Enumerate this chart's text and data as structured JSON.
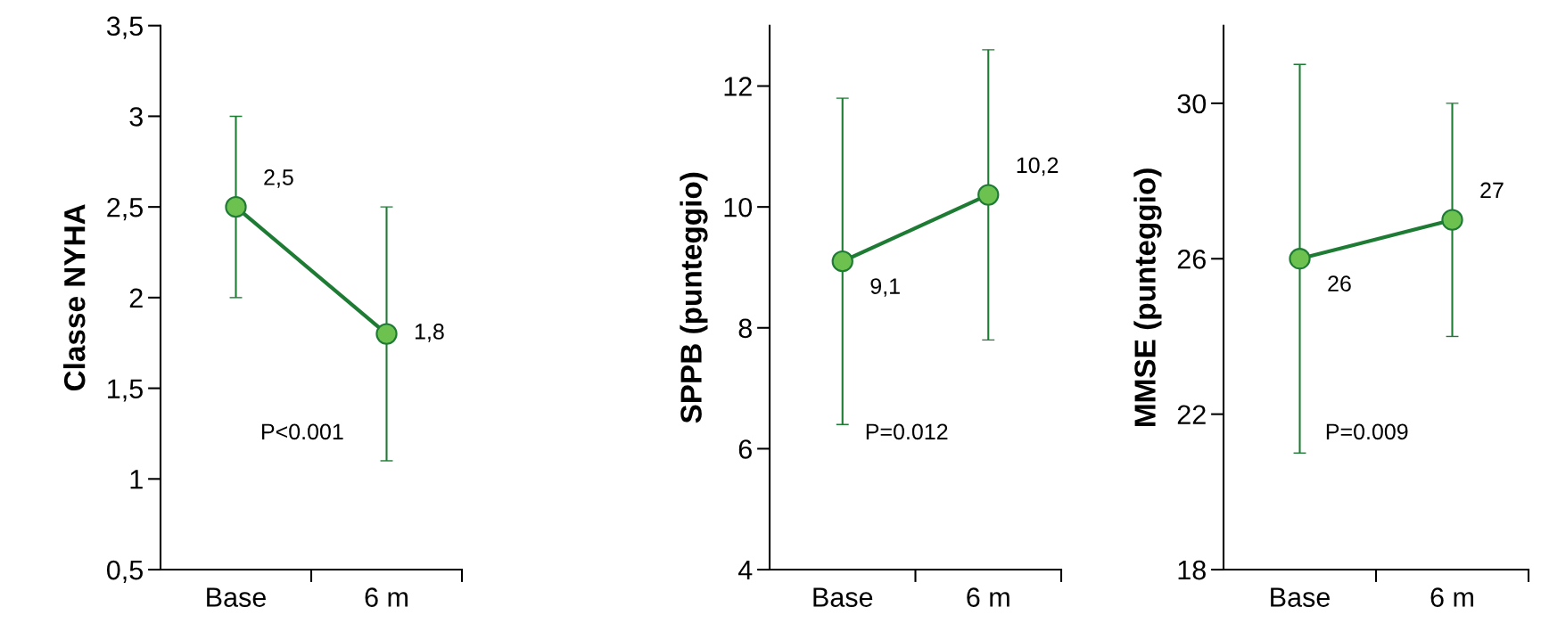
{
  "chart_data": [
    {
      "type": "line",
      "ylabel": "Classe NYHA",
      "categories": [
        "Base",
        "6 m"
      ],
      "ylim": [
        0.5,
        3.5
      ],
      "yticks": [
        {
          "value": 0.5,
          "label": "0,5"
        },
        1,
        {
          "value": 1.5,
          "label": "1,5"
        },
        2,
        {
          "value": 2.5,
          "label": "2,5"
        },
        3,
        {
          "value": 3.5,
          "label": "3,5"
        }
      ],
      "marker": "circle",
      "grid": false,
      "legend": false,
      "series": [
        {
          "color": "#1e7b34",
          "values": [
            2.5,
            1.8
          ],
          "errors": [
            0.5,
            0.7
          ],
          "value_labels": [
            "2,5",
            "1,8"
          ]
        }
      ],
      "annotations": [
        "P<0.001"
      ]
    },
    {
      "type": "line",
      "ylabel": "SPPB (punteggio)",
      "categories": [
        "Base",
        "6 m"
      ],
      "ylim": [
        4,
        13
      ],
      "yticks": [
        4,
        6,
        8,
        10,
        12
      ],
      "marker": "circle",
      "grid": false,
      "legend": false,
      "series": [
        {
          "color": "#1e7b34",
          "values": [
            9.1,
            10.2
          ],
          "errors": [
            2.7,
            2.4
          ],
          "value_labels": [
            "9,1",
            "10,2"
          ]
        }
      ],
      "annotations": [
        "P=0.012"
      ]
    },
    {
      "type": "line",
      "ylabel": "MMSE (punteggio)",
      "categories": [
        "Base",
        "6 m"
      ],
      "ylim": [
        18,
        32
      ],
      "yticks": [
        18,
        22,
        26,
        30
      ],
      "marker": "circle",
      "grid": false,
      "legend": false,
      "series": [
        {
          "color": "#1e7b34",
          "values": [
            26,
            27
          ],
          "errors": [
            5,
            3
          ],
          "value_labels": [
            "26",
            "27"
          ]
        }
      ],
      "annotations": [
        "P=0.009"
      ]
    }
  ]
}
